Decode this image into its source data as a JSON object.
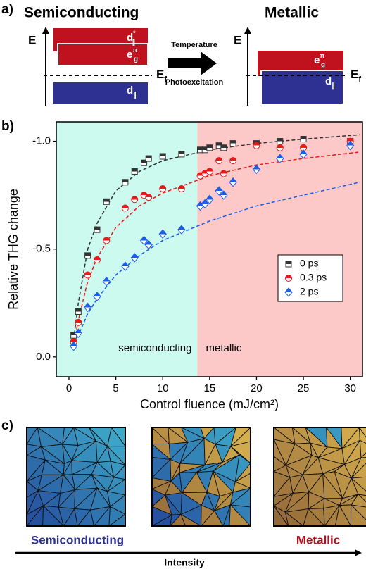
{
  "panel_labels": {
    "a": "a)",
    "b": "b)",
    "c": "c)"
  },
  "panel_a": {
    "left_title": "Semiconducting",
    "right_title": "Metallic",
    "energy_axis": "E",
    "fermi": {
      "base": "E",
      "sub": "f"
    },
    "d_star": {
      "base": "d",
      "sub": "∥",
      "sup": "*"
    },
    "e_g": {
      "base": "e",
      "sub": "g",
      "sup": "π"
    },
    "d_par": {
      "base": "d",
      "sub": "∥"
    },
    "arrow_top": "Temperature",
    "arrow_bottom": "Photoexcitation"
  },
  "chart_data": {
    "type": "scatter",
    "ylabel": "Relative THG change",
    "xlabel": "Control fluence (mJ/cm²)",
    "xlim": [
      -1.35,
      31.3
    ],
    "ylim": [
      0.092,
      -1.09
    ],
    "xticks": [
      0,
      5,
      10,
      15,
      20,
      25,
      30
    ],
    "yticks": [
      {
        "value": 0,
        "label": "0.0"
      },
      -0.5,
      {
        "value": -1,
        "label": "-1.0"
      }
    ],
    "regions": [
      {
        "label": "semiconducting",
        "from": -1.35,
        "to": 13.7,
        "color": "#ccfaee"
      },
      {
        "label": "metallic",
        "from": 13.7,
        "to": 31.3,
        "color": "#fcc8c8"
      }
    ],
    "x": [
      0.5,
      1,
      2,
      3,
      4,
      6,
      7,
      8,
      8.5,
      10,
      12,
      14,
      14.5,
      15,
      16,
      16.5,
      17.5,
      20,
      22.5,
      25,
      30
    ],
    "series": [
      {
        "name": "0 ps",
        "color": "#333333",
        "marker": "square",
        "values": [
          -0.1,
          -0.21,
          -0.47,
          -0.59,
          -0.72,
          -0.81,
          -0.86,
          -0.9,
          -0.92,
          -0.93,
          -0.94,
          -0.96,
          -0.96,
          -0.97,
          -0.98,
          -0.97,
          -0.99,
          -0.99,
          -1.0,
          -1.01,
          -1.0
        ]
      },
      {
        "name": "0.3 ps",
        "color": "#e8191b",
        "marker": "circle",
        "values": [
          -0.07,
          -0.16,
          -0.38,
          -0.45,
          -0.54,
          -0.69,
          -0.73,
          -0.75,
          -0.74,
          -0.78,
          -0.78,
          -0.84,
          -0.85,
          -0.86,
          -0.91,
          -0.85,
          -0.91,
          -0.98,
          -0.97,
          -0.97,
          -1.0
        ]
      },
      {
        "name": "2 ps",
        "color": "#1a5ee8",
        "marker": "diamond",
        "values": [
          -0.05,
          -0.11,
          -0.23,
          -0.28,
          -0.35,
          -0.42,
          -0.46,
          -0.54,
          -0.52,
          -0.57,
          -0.59,
          -0.7,
          -0.71,
          -0.73,
          -0.77,
          -0.75,
          -0.81,
          -0.87,
          -0.92,
          -0.94,
          -0.98
        ]
      }
    ],
    "fit_x": [
      0.5,
      1,
      2,
      3,
      5,
      7.5,
      10,
      15,
      20,
      25,
      31
    ],
    "fits": [
      {
        "color": "#333333",
        "values": [
          -0.08,
          -0.25,
          -0.5,
          -0.62,
          -0.77,
          -0.86,
          -0.91,
          -0.96,
          -0.99,
          -1.01,
          -1.03
        ]
      },
      {
        "color": "#e8191b",
        "values": [
          -0.05,
          -0.17,
          -0.35,
          -0.46,
          -0.6,
          -0.7,
          -0.76,
          -0.84,
          -0.89,
          -0.92,
          -0.95
        ]
      },
      {
        "color": "#1a5ee8",
        "values": [
          -0.04,
          -0.1,
          -0.2,
          -0.27,
          -0.38,
          -0.47,
          -0.54,
          -0.63,
          -0.7,
          -0.75,
          -0.81
        ]
      }
    ]
  },
  "panel_c": {
    "left_label": "Semiconducting",
    "right_label": "Metallic",
    "axis_label": "Intensity"
  }
}
